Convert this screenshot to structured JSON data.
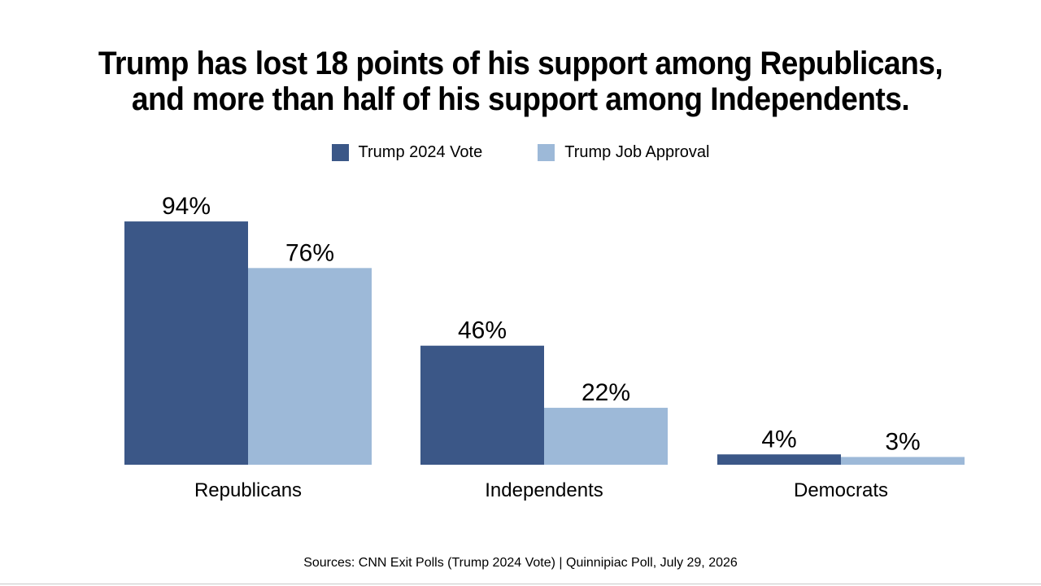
{
  "chart_data": {
    "type": "bar",
    "title_lines": [
      "Trump has lost 18 points of his support among Republicans,",
      "and more than half of his support among Independents."
    ],
    "categories": [
      "Republicans",
      "Independents",
      "Democrats"
    ],
    "series": [
      {
        "name": "Trump 2024 Vote",
        "values": [
          94,
          46,
          4
        ],
        "labels": [
          "94%",
          "46%",
          "4%"
        ],
        "color": "#3b5787"
      },
      {
        "name": "Trump Job Approval",
        "values": [
          76,
          22,
          3
        ],
        "labels": [
          "76%",
          "22%",
          "3%"
        ],
        "color": "#9db9d8"
      }
    ],
    "ylim": [
      0,
      100
    ],
    "grid": false,
    "legend_position": "top-center"
  },
  "source": "Sources: CNN Exit Polls (Trump 2024 Vote) | Quinnipiac Poll, July 29, 2026"
}
